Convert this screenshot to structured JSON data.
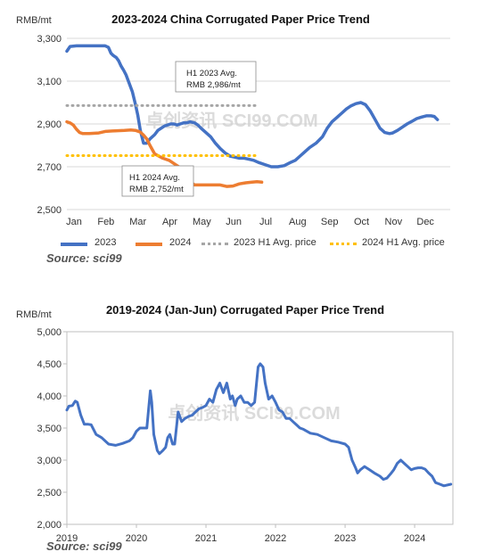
{
  "chart_data": [
    {
      "type": "line",
      "title": "2023-2024 China Corrugated Paper Price Trend",
      "ylabel": "RMB/mt",
      "ylim": [
        2500,
        3300
      ],
      "yticks": [
        2500,
        2700,
        2900,
        3100,
        3300
      ],
      "ytick_labels": [
        "2,500",
        "2,700",
        "2,900",
        "3,100",
        "3,300"
      ],
      "categories": [
        "Jan",
        "Feb",
        "Mar",
        "Apr",
        "May",
        "Jun",
        "Jul",
        "Aug",
        "Sep",
        "Oct",
        "Nov",
        "Dec"
      ],
      "grid": true,
      "legend": "bottom",
      "series": [
        {
          "name": "2023",
          "color": "#4472c4",
          "x": [
            0,
            0.1,
            0.3,
            0.6,
            1.0,
            1.2,
            1.3,
            1.38,
            1.45,
            1.55,
            1.62,
            1.7,
            1.78,
            1.85,
            1.95,
            2.05,
            2.15,
            2.22,
            2.3,
            2.4,
            2.5,
            2.6,
            2.75,
            2.85,
            2.95,
            3.05,
            3.15,
            3.25,
            3.35,
            3.45,
            3.55,
            3.65,
            3.75,
            3.85,
            4.0,
            4.1,
            4.2,
            4.35,
            4.5,
            4.65,
            4.8,
            4.95,
            5.1,
            5.25,
            5.4,
            5.55,
            5.7,
            5.85,
            6.0,
            6.2,
            6.4,
            6.6,
            6.8,
            7.0,
            7.15,
            7.3,
            7.45,
            7.6,
            7.8,
            8.0,
            8.15,
            8.3,
            8.45,
            8.6,
            8.75,
            8.9,
            9.05,
            9.2,
            9.35,
            9.5,
            9.65,
            9.8,
            9.95,
            10.1,
            10.2,
            10.35,
            10.5,
            10.65,
            10.8,
            10.95,
            11.1,
            11.25,
            11.4,
            11.5,
            11.6
          ],
          "values": [
            3240,
            3262,
            3265,
            3265,
            3265,
            3265,
            3258,
            3230,
            3220,
            3210,
            3195,
            3170,
            3150,
            3130,
            3090,
            3050,
            2990,
            2940,
            2870,
            2810,
            2810,
            2830,
            2850,
            2870,
            2880,
            2890,
            2895,
            2900,
            2900,
            2895,
            2900,
            2905,
            2905,
            2910,
            2905,
            2895,
            2880,
            2860,
            2840,
            2810,
            2785,
            2765,
            2750,
            2745,
            2740,
            2740,
            2735,
            2730,
            2720,
            2710,
            2700,
            2700,
            2705,
            2720,
            2730,
            2750,
            2770,
            2790,
            2810,
            2840,
            2880,
            2910,
            2930,
            2950,
            2970,
            2985,
            2995,
            3000,
            2990,
            2960,
            2920,
            2880,
            2860,
            2855,
            2858,
            2870,
            2885,
            2900,
            2912,
            2925,
            2932,
            2938,
            2938,
            2935,
            2920
          ]
        },
        {
          "name": "2024",
          "color": "#ed7d31",
          "x": [
            0,
            0.1,
            0.2,
            0.3,
            0.4,
            0.5,
            0.7,
            1.0,
            1.2,
            1.5,
            1.8,
            2.0,
            2.15,
            2.3,
            2.4,
            2.5,
            2.6,
            2.75,
            2.9,
            3.0,
            3.1,
            3.2,
            3.3,
            3.4,
            3.5,
            3.6,
            3.7,
            3.8,
            3.9,
            4.0,
            4.2,
            4.5,
            4.8,
            5.0,
            5.2,
            5.4,
            5.6,
            5.8,
            5.95,
            6.1
          ],
          "values": [
            2910,
            2905,
            2895,
            2875,
            2860,
            2855,
            2855,
            2858,
            2865,
            2868,
            2870,
            2872,
            2870,
            2862,
            2848,
            2830,
            2800,
            2760,
            2748,
            2740,
            2735,
            2730,
            2720,
            2710,
            2700,
            2690,
            2670,
            2640,
            2625,
            2615,
            2615,
            2615,
            2615,
            2608,
            2610,
            2620,
            2625,
            2628,
            2630,
            2628
          ]
        },
        {
          "name": "2023 H1 Avg. price",
          "color": "#a6a6a6",
          "dotted": true,
          "x": [
            0,
            6.0
          ],
          "values": [
            2986,
            2986
          ]
        },
        {
          "name": "2024 H1 Avg. price",
          "color": "#ffc000",
          "dotted": true,
          "x": [
            0,
            6.0
          ],
          "values": [
            2752,
            2752
          ]
        }
      ],
      "annotations": [
        {
          "text_lines": [
            "H1   2023   Avg.",
            "RMB 2,986/mt"
          ],
          "target_x": 3.55,
          "target_y": 2986
        },
        {
          "text_lines": [
            "H1   2024   Avg.",
            "RMB 2,752/mt"
          ],
          "target_x": 1.9,
          "target_y": 2752
        }
      ],
      "watermark": "卓创资讯 SCI99.COM",
      "source": "Source: sci99"
    },
    {
      "type": "line",
      "title": "2019-2024 (Jan-Jun) Corrugated Paper Price Trend",
      "ylabel": "RMB/mt",
      "ylim": [
        2000,
        5000
      ],
      "yticks": [
        2000,
        2500,
        3000,
        3500,
        4000,
        4500,
        5000
      ],
      "ytick_labels": [
        "2,000",
        "2,500",
        "3,000",
        "3,500",
        "4,000",
        "4,500",
        "5,000"
      ],
      "categories": [
        "2019",
        "2020",
        "2021",
        "2022",
        "2023",
        "2024"
      ],
      "xlim": [
        2019,
        2024.55
      ],
      "grid": false,
      "series": [
        {
          "name": "",
          "color": "#4472c4",
          "x": [
            2019.0,
            2019.03,
            2019.08,
            2019.12,
            2019.15,
            2019.2,
            2019.25,
            2019.3,
            2019.35,
            2019.42,
            2019.5,
            2019.6,
            2019.7,
            2019.8,
            2019.9,
            2019.95,
            2020.0,
            2020.05,
            2020.1,
            2020.15,
            2020.2,
            2020.22,
            2020.25,
            2020.3,
            2020.33,
            2020.38,
            2020.42,
            2020.45,
            2020.48,
            2020.52,
            2020.55,
            2020.6,
            2020.65,
            2020.7,
            2020.75,
            2020.8,
            2020.85,
            2020.9,
            2020.95,
            2021.0,
            2021.05,
            2021.1,
            2021.15,
            2021.2,
            2021.25,
            2021.3,
            2021.35,
            2021.38,
            2021.42,
            2021.45,
            2021.5,
            2021.55,
            2021.6,
            2021.65,
            2021.7,
            2021.75,
            2021.78,
            2021.82,
            2021.85,
            2021.9,
            2021.95,
            2022.0,
            2022.05,
            2022.1,
            2022.15,
            2022.2,
            2022.25,
            2022.3,
            2022.35,
            2022.4,
            2022.5,
            2022.6,
            2022.7,
            2022.8,
            2022.9,
            2023.0,
            2023.05,
            2023.1,
            2023.15,
            2023.18,
            2023.22,
            2023.28,
            2023.35,
            2023.42,
            2023.5,
            2023.55,
            2023.6,
            2023.65,
            2023.7,
            2023.75,
            2023.8,
            2023.85,
            2023.9,
            2023.95,
            2024.0,
            2024.05,
            2024.1,
            2024.15,
            2024.2,
            2024.25,
            2024.3,
            2024.35,
            2024.42,
            2024.5,
            2024.52
          ],
          "values": [
            3780,
            3840,
            3850,
            3920,
            3900,
            3700,
            3560,
            3560,
            3550,
            3400,
            3350,
            3250,
            3230,
            3260,
            3300,
            3350,
            3450,
            3500,
            3500,
            3500,
            4080,
            3900,
            3400,
            3150,
            3100,
            3150,
            3200,
            3350,
            3400,
            3250,
            3250,
            3750,
            3600,
            3650,
            3680,
            3700,
            3750,
            3800,
            3820,
            3850,
            3950,
            3900,
            4100,
            4200,
            4050,
            4200,
            3950,
            4000,
            3850,
            3950,
            4000,
            3900,
            3900,
            3850,
            3900,
            4450,
            4500,
            4450,
            4200,
            3950,
            4000,
            3900,
            3780,
            3750,
            3650,
            3650,
            3600,
            3550,
            3500,
            3480,
            3420,
            3400,
            3350,
            3300,
            3280,
            3250,
            3200,
            3000,
            2880,
            2800,
            2850,
            2900,
            2850,
            2800,
            2750,
            2700,
            2720,
            2780,
            2850,
            2950,
            3000,
            2950,
            2900,
            2850,
            2870,
            2880,
            2880,
            2860,
            2800,
            2750,
            2650,
            2630,
            2600,
            2620,
            2625
          ]
        }
      ],
      "watermark": "卓创资讯 SCI99.COM",
      "source": "Source: sci99"
    }
  ]
}
